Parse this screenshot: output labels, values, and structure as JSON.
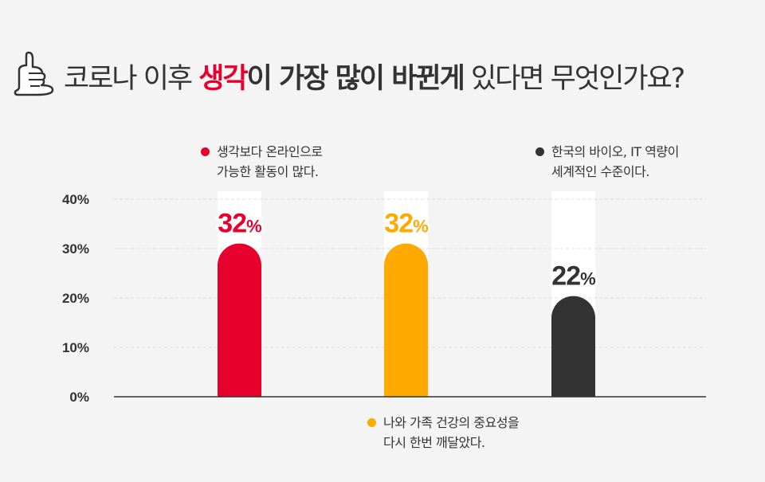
{
  "title": {
    "part1": "코로나 이후 ",
    "highlight": "생각",
    "part2": "이 가장 많이 바뀐게",
    "part3": " 있다면 무엇인가요?",
    "icon": "thumbs-up-icon"
  },
  "chart_data": {
    "type": "bar",
    "categories": [
      "생각보다 온라인으로 가능한 활동이 많다.",
      "나와 가족 건강의 중요성을 다시 한번 깨달았다.",
      "한국의 바이오, IT 역량이 세계적인 수준이다."
    ],
    "values": [
      32,
      32,
      22
    ],
    "value_labels": [
      "32",
      "32",
      "22"
    ],
    "value_suffix": "%",
    "colors": [
      "#e8002d",
      "#ffaa00",
      "#333333"
    ],
    "yticks": [
      "0%",
      "10%",
      "20%",
      "30%",
      "40%"
    ],
    "ylim": [
      0,
      40
    ],
    "grid": true,
    "legend": [
      {
        "line1": "생각보다 온라인으로",
        "line2": "가능한 활동이 많다.",
        "color": "#e8002d"
      },
      {
        "line1": "나와 가족 건강의 중요성을",
        "line2": "다시 한번 깨달았다.",
        "color": "#ffaa00"
      },
      {
        "line1": "한국의 바이오, IT 역량이",
        "line2": "세계적인 수준이다.",
        "color": "#333333"
      }
    ]
  }
}
